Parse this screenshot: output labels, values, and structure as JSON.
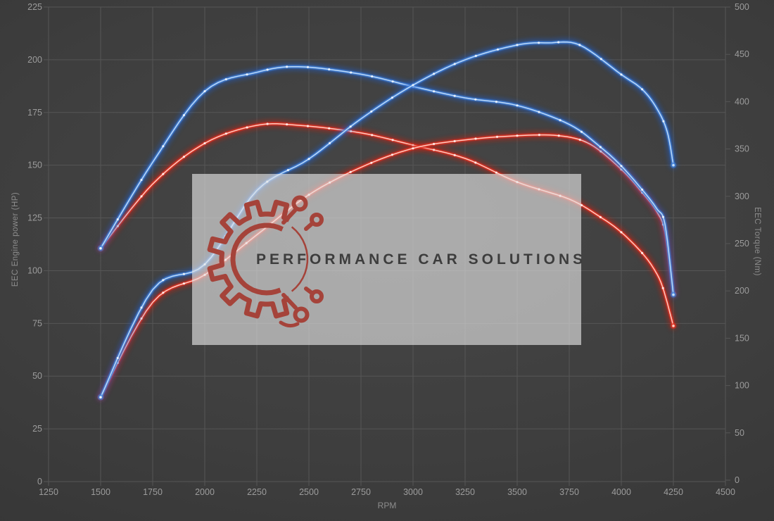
{
  "chart_data": {
    "type": "line",
    "xlabel": "RPM",
    "ylabel_left": "EEC Engine power (HP)",
    "ylabel_right": "EEC Torque (Nm)",
    "x_range": [
      1250,
      4500
    ],
    "x_ticks": [
      1250,
      1500,
      1750,
      2000,
      2250,
      2500,
      2750,
      3000,
      3250,
      3500,
      3750,
      4000,
      4250,
      4500
    ],
    "y_left_range": [
      0,
      225
    ],
    "y_left_ticks": [
      0,
      25,
      50,
      75,
      100,
      125,
      150,
      175,
      200,
      225
    ],
    "y_right_range": [
      0,
      500
    ],
    "y_right_ticks": [
      0,
      50,
      100,
      150,
      200,
      250,
      300,
      350,
      400,
      450,
      500
    ],
    "grid": true,
    "legend": "none",
    "series": [
      {
        "name": "torque-red",
        "axis": "right",
        "color": "curve_red",
        "points": [
          [
            1500,
            245
          ],
          [
            1750,
            313
          ],
          [
            2000,
            356
          ],
          [
            2250,
            375
          ],
          [
            2450,
            375
          ],
          [
            2750,
            367
          ],
          [
            3000,
            354
          ],
          [
            3250,
            340
          ],
          [
            3500,
            315
          ],
          [
            3750,
            297
          ],
          [
            3900,
            278
          ],
          [
            4000,
            262
          ],
          [
            4100,
            240
          ],
          [
            4160,
            222
          ],
          [
            4200,
            203
          ],
          [
            4250,
            163
          ]
        ]
      },
      {
        "name": "power-red",
        "axis": "left",
        "color": "curve_red",
        "points": [
          [
            1500,
            40
          ],
          [
            1750,
            85
          ],
          [
            2000,
            98
          ],
          [
            2250,
            117
          ],
          [
            2500,
            136
          ],
          [
            2750,
            149
          ],
          [
            3000,
            158
          ],
          [
            3250,
            162
          ],
          [
            3500,
            164
          ],
          [
            3700,
            164
          ],
          [
            3850,
            160
          ],
          [
            4000,
            148
          ],
          [
            4100,
            137
          ],
          [
            4170,
            128
          ],
          [
            4210,
            118
          ],
          [
            4250,
            89
          ]
        ]
      },
      {
        "name": "torque-blue",
        "axis": "right",
        "color": "curve_blue",
        "points": [
          [
            1500,
            245
          ],
          [
            1750,
            336
          ],
          [
            2000,
            411
          ],
          [
            2250,
            431
          ],
          [
            2450,
            437
          ],
          [
            2750,
            429
          ],
          [
            3000,
            416
          ],
          [
            3250,
            404
          ],
          [
            3500,
            396
          ],
          [
            3750,
            376
          ],
          [
            3900,
            352
          ],
          [
            4000,
            332
          ],
          [
            4100,
            307
          ],
          [
            4170,
            287
          ],
          [
            4210,
            270
          ],
          [
            4250,
            196
          ]
        ]
      },
      {
        "name": "power-blue",
        "axis": "left",
        "color": "curve_blue",
        "points": [
          [
            1500,
            40
          ],
          [
            1750,
            91
          ],
          [
            2000,
            103
          ],
          [
            2250,
            138
          ],
          [
            2500,
            153
          ],
          [
            2750,
            172
          ],
          [
            3000,
            188
          ],
          [
            3250,
            200
          ],
          [
            3500,
            207
          ],
          [
            3650,
            208
          ],
          [
            3800,
            207
          ],
          [
            4000,
            193
          ],
          [
            4100,
            186
          ],
          [
            4170,
            177
          ],
          [
            4220,
            166
          ],
          [
            4250,
            150
          ]
        ]
      }
    ]
  },
  "watermark": {
    "text": "PERFORMANCE CAR SOLUTIONS",
    "logo": "gear-circuit-logo",
    "panel_color": "rgba(229,229,229,0.64)",
    "text_color": "#3d3d3d",
    "logo_color": "#a5433a"
  },
  "colors": {
    "background_center": "#474747",
    "background_edge": "#303030",
    "grid": "#565656",
    "tick_text": "#9c9c9c",
    "axis_title": "#8d8d8d",
    "marker": "#ffffff",
    "curve_blue": {
      "glow": "#1c5ed2",
      "mid": "#3f80da",
      "core": "#c3def9"
    },
    "curve_red": {
      "glow": "#cf1d10",
      "mid": "#e23322",
      "core": "#ffd3c9"
    }
  }
}
